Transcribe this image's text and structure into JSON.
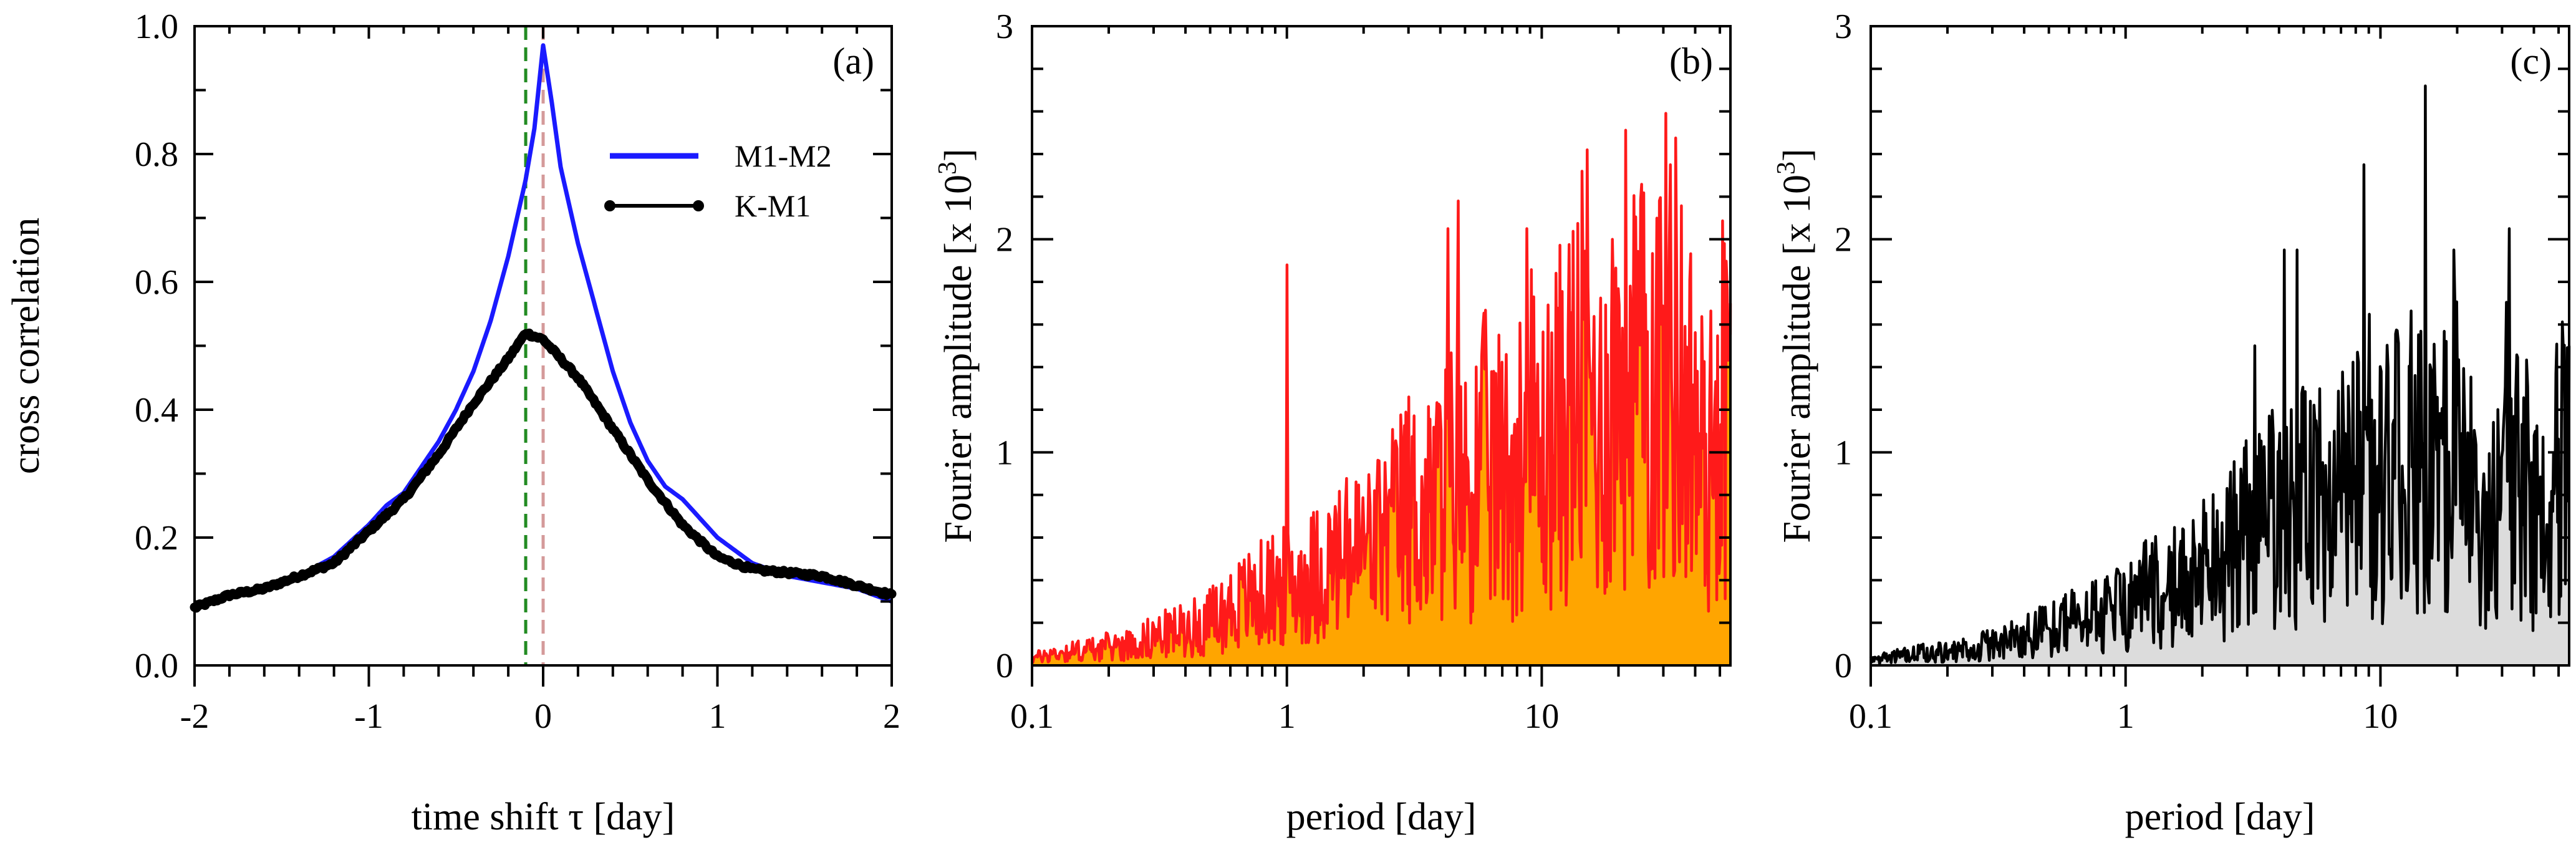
{
  "chart_data": [
    {
      "panel": "(a)",
      "type": "line",
      "xlabel": "time shift τ  [day]",
      "ylabel": "cross correlation",
      "xlim": [
        -2,
        2
      ],
      "ylim": [
        0,
        1
      ],
      "xticks": [
        "-2",
        "-1",
        "0",
        "1",
        "2"
      ],
      "yticks": [
        "0.0",
        "0.2",
        "0.4",
        "0.6",
        "0.8",
        "1.0"
      ],
      "vlines": [
        {
          "x": -0.1,
          "color": "#228b22",
          "style": "dashed"
        },
        {
          "x": 0.0,
          "color": "#d49a9a",
          "style": "dashed"
        }
      ],
      "series": [
        {
          "name": "M1-M2",
          "color": "#1a1aff",
          "x": [
            -2,
            -1.8,
            -1.6,
            -1.4,
            -1.2,
            -1.0,
            -0.9,
            -0.8,
            -0.7,
            -0.6,
            -0.5,
            -0.4,
            -0.3,
            -0.2,
            -0.1,
            -0.05,
            0.0,
            0.05,
            0.1,
            0.2,
            0.3,
            0.4,
            0.5,
            0.6,
            0.7,
            0.8,
            0.9,
            1.0,
            1.2,
            1.4,
            1.6,
            1.8,
            2.0
          ],
          "values": [
            0.09,
            0.11,
            0.12,
            0.14,
            0.17,
            0.22,
            0.25,
            0.27,
            0.31,
            0.35,
            0.4,
            0.46,
            0.54,
            0.64,
            0.76,
            0.84,
            0.97,
            0.88,
            0.78,
            0.66,
            0.56,
            0.46,
            0.38,
            0.32,
            0.28,
            0.26,
            0.23,
            0.2,
            0.16,
            0.14,
            0.13,
            0.12,
            0.1
          ]
        },
        {
          "name": "K-M1",
          "color": "#000000",
          "x": [
            -2,
            -1.8,
            -1.6,
            -1.4,
            -1.2,
            -1.0,
            -0.8,
            -0.6,
            -0.4,
            -0.2,
            -0.1,
            0.0,
            0.2,
            0.4,
            0.6,
            0.8,
            1.0,
            1.2,
            1.4,
            1.6,
            1.8,
            2.0
          ],
          "values": [
            0.09,
            0.11,
            0.12,
            0.14,
            0.16,
            0.21,
            0.26,
            0.33,
            0.41,
            0.48,
            0.52,
            0.51,
            0.45,
            0.37,
            0.29,
            0.22,
            0.17,
            0.15,
            0.145,
            0.14,
            0.125,
            0.11
          ]
        }
      ]
    },
    {
      "panel": "(b)",
      "type": "area",
      "xlabel": "period  [day]",
      "ylabel": "Fourier amplitude  [x 10^3]",
      "ylabel_main": "Fourier amplitude  [x 10",
      "ylabel_exp": "3",
      "ylabel_end": "]",
      "xscale": "log",
      "xlim": [
        0.1,
        55
      ],
      "ylim": [
        0,
        3
      ],
      "xticks": [
        "0.1",
        "1",
        "10"
      ],
      "yticks": [
        "0",
        "1",
        "2",
        "3"
      ],
      "fill_color": "#ffa500",
      "line_color": "#ff1a1a",
      "series": [
        {
          "name": "spectrum",
          "x": [
            0.1,
            0.12,
            0.15,
            0.2,
            0.25,
            0.3,
            0.4,
            0.5,
            0.6,
            0.8,
            1.0,
            1.2,
            1.5,
            2.0,
            2.5,
            3.0,
            3.5,
            4.0,
            4.5,
            5.0,
            6.0,
            7.0,
            8.0,
            9.0,
            10,
            12,
            14,
            15,
            17,
            19,
            22,
            25,
            28,
            32,
            35,
            40,
            45,
            50,
            55
          ],
          "values": [
            0.05,
            0.08,
            0.1,
            0.13,
            0.15,
            0.2,
            0.25,
            0.3,
            0.4,
            0.5,
            0.55,
            0.6,
            0.7,
            0.8,
            0.9,
            1.1,
            1.0,
            1.2,
            1.3,
            1.2,
            1.4,
            1.3,
            1.4,
            1.6,
            1.4,
            1.7,
            1.9,
            2.0,
            1.6,
            1.9,
            2.2,
            1.9,
            2.0,
            2.3,
            2.0,
            1.6,
            1.3,
            1.9,
            1.7
          ],
          "peaks": [
            {
              "x": 1.0,
              "value": 1.88
            },
            {
              "x": 4.3,
              "value": 2.05
            },
            {
              "x": 4.7,
              "value": 2.18
            },
            {
              "x": 8.7,
              "value": 2.05
            },
            {
              "x": 15.0,
              "value": 2.42
            },
            {
              "x": 19.0,
              "value": 2.0
            },
            {
              "x": 32.0,
              "value": 2.35
            },
            {
              "x": 52.0,
              "value": 1.98
            }
          ]
        }
      ]
    },
    {
      "panel": "(c)",
      "type": "area",
      "xlabel": "period  [day]",
      "ylabel": "Fourier amplitude  [x 10^3]",
      "ylabel_main": "Fourier amplitude  [x 10",
      "ylabel_exp": "3",
      "ylabel_end": "]",
      "xscale": "log",
      "xlim": [
        0.1,
        55
      ],
      "ylim": [
        0,
        3
      ],
      "xticks": [
        "0.1",
        "1",
        "10"
      ],
      "yticks": [
        "0",
        "1",
        "2",
        "3"
      ],
      "fill_color": "#dcdcdc",
      "line_color": "#000000",
      "series": [
        {
          "name": "spectrum",
          "x": [
            0.1,
            0.12,
            0.15,
            0.2,
            0.25,
            0.3,
            0.4,
            0.5,
            0.6,
            0.8,
            1.0,
            1.2,
            1.5,
            2.0,
            2.5,
            3.0,
            3.5,
            4.0,
            4.5,
            5.0,
            6.0,
            7.0,
            8.0,
            9.0,
            10,
            12,
            14,
            15,
            17,
            19,
            22,
            25,
            28,
            32,
            35,
            40,
            45,
            50,
            55
          ],
          "values": [
            0.04,
            0.06,
            0.08,
            0.1,
            0.12,
            0.15,
            0.2,
            0.25,
            0.3,
            0.35,
            0.4,
            0.5,
            0.55,
            0.65,
            0.75,
            0.9,
            1.0,
            1.1,
            1.0,
            1.2,
            1.1,
            1.3,
            1.2,
            1.4,
            1.2,
            1.4,
            1.6,
            1.5,
            1.2,
            1.6,
            1.2,
            0.9,
            1.2,
            1.6,
            1.4,
            1.0,
            0.9,
            1.4,
            1.5
          ],
          "peaks": [
            {
              "x": 3.2,
              "value": 1.5
            },
            {
              "x": 4.2,
              "value": 1.95
            },
            {
              "x": 4.7,
              "value": 1.95
            },
            {
              "x": 8.6,
              "value": 2.35
            },
            {
              "x": 15.0,
              "value": 2.72
            },
            {
              "x": 19.5,
              "value": 1.95
            },
            {
              "x": 32.0,
              "value": 2.05
            },
            {
              "x": 52.0,
              "value": 1.5
            }
          ]
        }
      ]
    }
  ]
}
